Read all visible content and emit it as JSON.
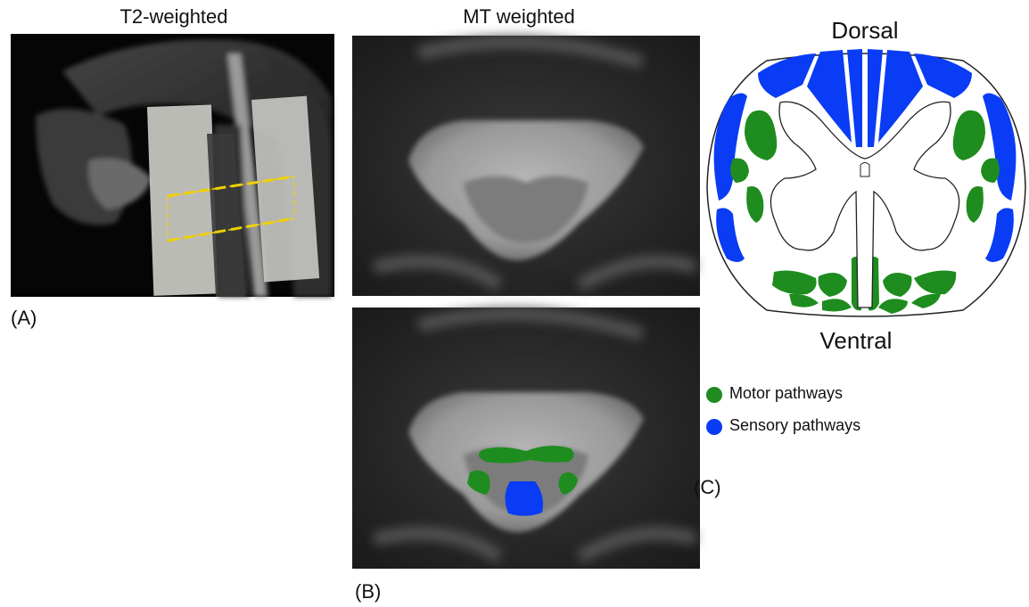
{
  "panel_a": {
    "title": "T2-weighted",
    "label": "(A)"
  },
  "panel_b": {
    "title": "MT weighted",
    "label": "(B)"
  },
  "panel_c": {
    "top_label": "Dorsal",
    "bottom_label": "Ventral",
    "label": "(C)",
    "legend": [
      {
        "label": "Motor pathways",
        "color": "#1e8c1e"
      },
      {
        "label": "Sensory pathways",
        "color": "#0a3cf5"
      }
    ]
  }
}
